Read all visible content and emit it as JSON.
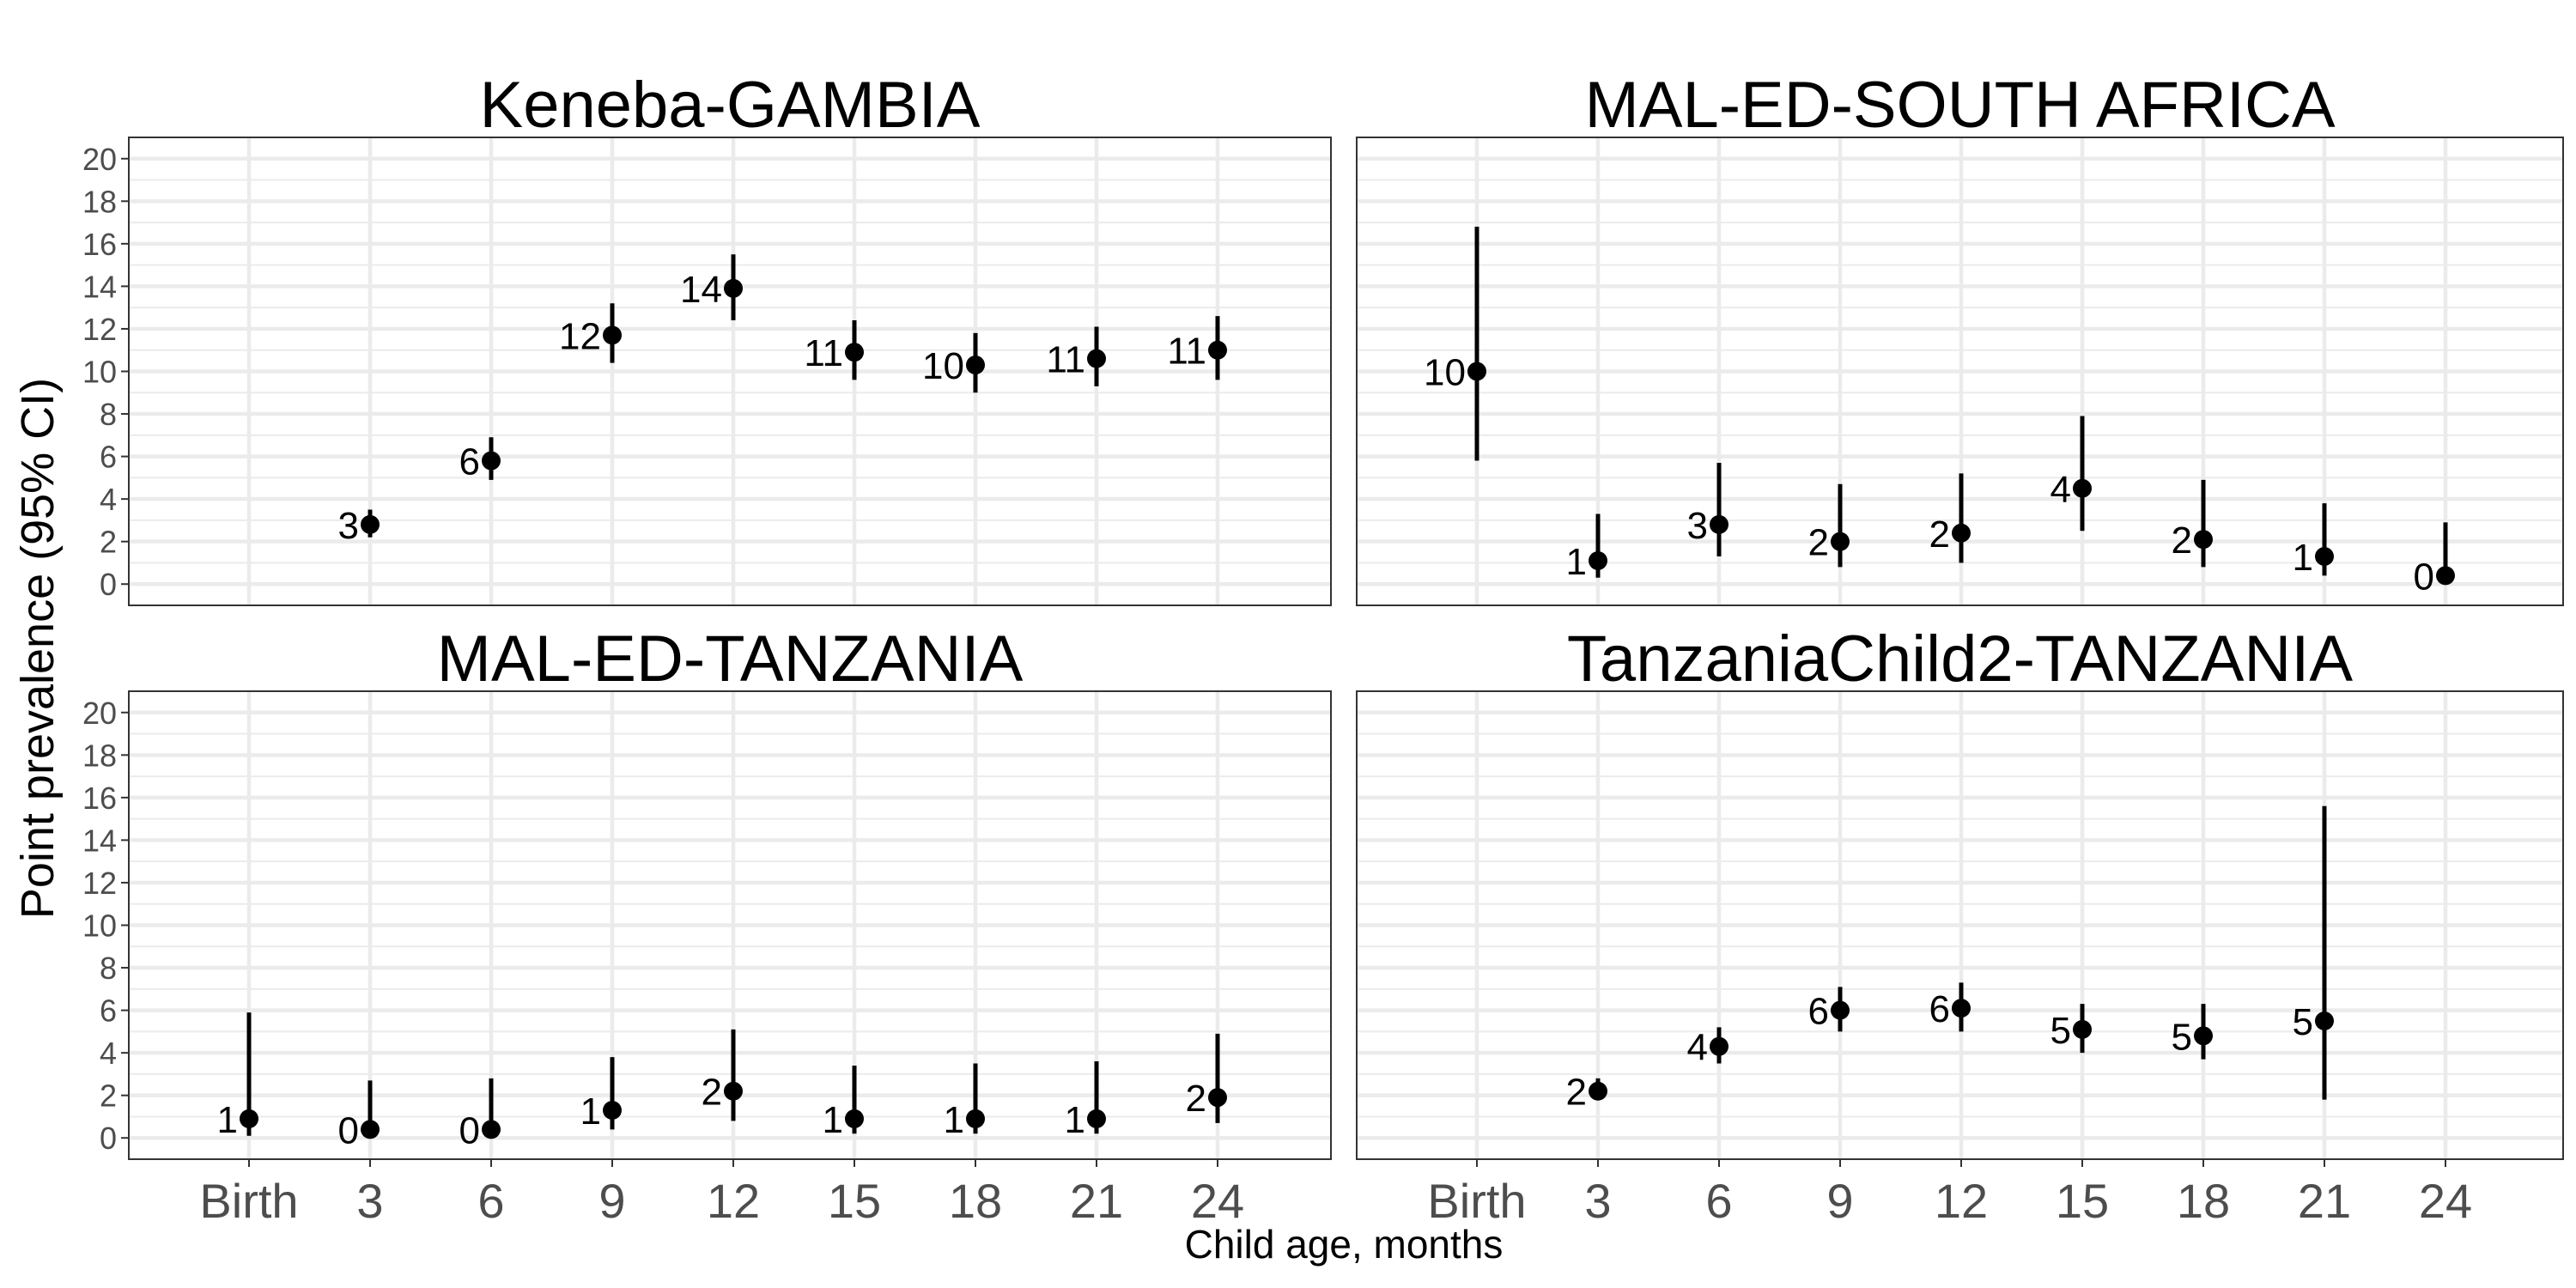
{
  "chart_data": {
    "type": "scatter",
    "subtype": "point-range facet grid",
    "xlabel": "Child age, months",
    "ylabel": "Point prevalence (95% CI)",
    "categories": [
      "Birth",
      "3",
      "6",
      "9",
      "12",
      "15",
      "18",
      "21",
      "24"
    ],
    "ylim": [
      -1,
      21
    ],
    "yticks": [
      "0",
      "2",
      "4",
      "6",
      "8",
      "10",
      "12",
      "14",
      "16",
      "18",
      "20"
    ],
    "panels": [
      {
        "title": "Keneba-GAMBIA",
        "points": [
          {
            "x": "3",
            "y": 2.8,
            "lo": 2.2,
            "hi": 3.5,
            "label": "3"
          },
          {
            "x": "6",
            "y": 5.8,
            "lo": 4.9,
            "hi": 6.9,
            "label": "6"
          },
          {
            "x": "9",
            "y": 11.7,
            "lo": 10.4,
            "hi": 13.2,
            "label": "12"
          },
          {
            "x": "12",
            "y": 13.9,
            "lo": 12.4,
            "hi": 15.5,
            "label": "14"
          },
          {
            "x": "15",
            "y": 10.9,
            "lo": 9.6,
            "hi": 12.4,
            "label": "11"
          },
          {
            "x": "18",
            "y": 10.3,
            "lo": 9.0,
            "hi": 11.8,
            "label": "10"
          },
          {
            "x": "21",
            "y": 10.6,
            "lo": 9.3,
            "hi": 12.1,
            "label": "11"
          },
          {
            "x": "24",
            "y": 11.0,
            "lo": 9.6,
            "hi": 12.6,
            "label": "11"
          }
        ]
      },
      {
        "title": "MAL-ED-SOUTH AFRICA",
        "points": [
          {
            "x": "Birth",
            "y": 10.0,
            "lo": 5.8,
            "hi": 16.8,
            "label": "10"
          },
          {
            "x": "3",
            "y": 1.1,
            "lo": 0.3,
            "hi": 3.3,
            "label": "1"
          },
          {
            "x": "6",
            "y": 2.8,
            "lo": 1.3,
            "hi": 5.7,
            "label": "3"
          },
          {
            "x": "9",
            "y": 2.0,
            "lo": 0.8,
            "hi": 4.7,
            "label": "2"
          },
          {
            "x": "12",
            "y": 2.4,
            "lo": 1.0,
            "hi": 5.2,
            "label": "2"
          },
          {
            "x": "15",
            "y": 4.5,
            "lo": 2.5,
            "hi": 7.9,
            "label": "4"
          },
          {
            "x": "18",
            "y": 2.1,
            "lo": 0.8,
            "hi": 4.9,
            "label": "2"
          },
          {
            "x": "21",
            "y": 1.3,
            "lo": 0.4,
            "hi": 3.8,
            "label": "1"
          },
          {
            "x": "24",
            "y": 0.4,
            "lo": 0.0,
            "hi": 2.9,
            "label": "0"
          }
        ]
      },
      {
        "title": "MAL-ED-TANZANIA",
        "points": [
          {
            "x": "Birth",
            "y": 0.9,
            "lo": 0.1,
            "hi": 5.9,
            "label": "1"
          },
          {
            "x": "3",
            "y": 0.4,
            "lo": 0.0,
            "hi": 2.7,
            "label": "0"
          },
          {
            "x": "6",
            "y": 0.4,
            "lo": 0.0,
            "hi": 2.8,
            "label": "0"
          },
          {
            "x": "9",
            "y": 1.3,
            "lo": 0.4,
            "hi": 3.8,
            "label": "1"
          },
          {
            "x": "12",
            "y": 2.2,
            "lo": 0.8,
            "hi": 5.1,
            "label": "2"
          },
          {
            "x": "15",
            "y": 0.9,
            "lo": 0.2,
            "hi": 3.4,
            "label": "1"
          },
          {
            "x": "18",
            "y": 0.9,
            "lo": 0.2,
            "hi": 3.5,
            "label": "1"
          },
          {
            "x": "21",
            "y": 0.9,
            "lo": 0.2,
            "hi": 3.6,
            "label": "1"
          },
          {
            "x": "24",
            "y": 1.9,
            "lo": 0.7,
            "hi": 4.9,
            "label": "2"
          }
        ]
      },
      {
        "title": "TanzaniaChild2-TANZANIA",
        "points": [
          {
            "x": "3",
            "y": 2.2,
            "lo": 1.8,
            "hi": 2.8,
            "label": "2"
          },
          {
            "x": "6",
            "y": 4.3,
            "lo": 3.5,
            "hi": 5.2,
            "label": "4"
          },
          {
            "x": "9",
            "y": 6.0,
            "lo": 5.0,
            "hi": 7.1,
            "label": "6"
          },
          {
            "x": "12",
            "y": 6.1,
            "lo": 5.0,
            "hi": 7.3,
            "label": "6"
          },
          {
            "x": "15",
            "y": 5.1,
            "lo": 4.0,
            "hi": 6.3,
            "label": "5"
          },
          {
            "x": "18",
            "y": 4.8,
            "lo": 3.7,
            "hi": 6.3,
            "label": "5"
          },
          {
            "x": "21",
            "y": 5.5,
            "lo": 1.8,
            "hi": 15.6,
            "label": "5"
          }
        ]
      }
    ]
  }
}
